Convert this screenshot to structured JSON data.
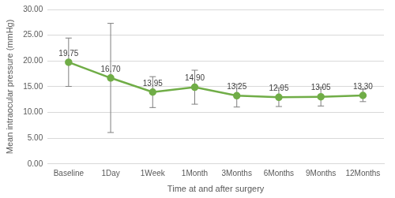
{
  "chart_data": {
    "type": "line",
    "x_label": "Time at and after surgery",
    "y_label": "Mean intraocular pressure (mmHg)",
    "categories": [
      "Baseline",
      "1Day",
      "1Week",
      "1Month",
      "3Months",
      "6Months",
      "9Months",
      "12Months"
    ],
    "values": [
      19.75,
      16.7,
      13.95,
      14.9,
      13.25,
      12.95,
      13.05,
      13.3
    ],
    "value_labels": [
      "19.75",
      "16.70",
      "13.95",
      "14.90",
      "13.25",
      "12.95",
      "13.05",
      "13.30"
    ],
    "errors": [
      4.7,
      10.6,
      3.0,
      3.3,
      2.2,
      1.8,
      1.8,
      1.2
    ],
    "color": "#70ad47",
    "marker": "circle",
    "line_style": "solid",
    "data_labels": true,
    "grid": true,
    "ylim": [
      0,
      30
    ],
    "yticks": [
      {
        "value": 0,
        "label": "0.00"
      },
      {
        "value": 5,
        "label": "5.00"
      },
      {
        "value": 10,
        "label": "10.00"
      },
      {
        "value": 15,
        "label": "15.00"
      },
      {
        "value": 20,
        "label": "20.00"
      },
      {
        "value": 25,
        "label": "25.00"
      },
      {
        "value": 30,
        "label": "30.00"
      }
    ]
  }
}
